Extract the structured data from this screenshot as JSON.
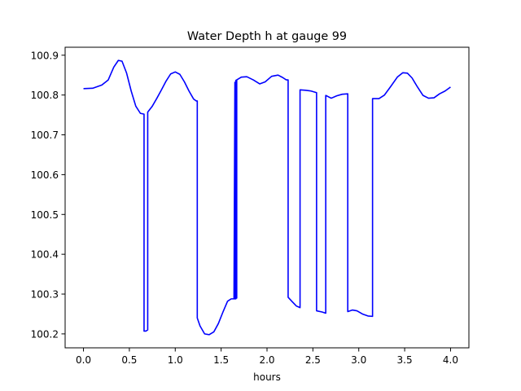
{
  "chart_data": {
    "type": "line",
    "title": "Water Depth h at gauge 99",
    "xlabel": "hours",
    "ylabel": "",
    "xlim": [
      -0.2,
      4.2
    ],
    "ylim": [
      100.165,
      100.92
    ],
    "xticks": [
      0.0,
      0.5,
      1.0,
      1.5,
      2.0,
      2.5,
      3.0,
      3.5,
      4.0
    ],
    "xtick_labels": [
      "0.0",
      "0.5",
      "1.0",
      "1.5",
      "2.0",
      "2.5",
      "3.0",
      "3.5",
      "4.0"
    ],
    "yticks": [
      100.2,
      100.3,
      100.4,
      100.5,
      100.6,
      100.7,
      100.8,
      100.9
    ],
    "ytick_labels": [
      "100.2",
      "100.3",
      "100.4",
      "100.5",
      "100.6",
      "100.7",
      "100.8",
      "100.9"
    ],
    "grid": false,
    "series": [
      {
        "color": "#0000ff",
        "x": [
          0.0,
          0.1,
          0.2,
          0.27,
          0.33,
          0.38,
          0.42,
          0.47,
          0.52,
          0.57,
          0.62,
          0.66,
          0.66,
          0.68,
          0.7,
          0.7,
          0.75,
          0.8,
          0.85,
          0.9,
          0.95,
          1.0,
          1.05,
          1.1,
          1.15,
          1.2,
          1.23,
          1.24,
          1.24,
          1.27,
          1.32,
          1.37,
          1.42,
          1.47,
          1.52,
          1.57,
          1.61,
          1.64,
          1.65,
          1.65,
          1.66,
          1.66,
          1.67,
          1.67,
          1.72,
          1.78,
          1.85,
          1.92,
          1.98,
          2.05,
          2.12,
          2.17,
          2.21,
          2.23,
          2.23,
          2.27,
          2.32,
          2.36,
          2.36,
          2.42,
          2.48,
          2.54,
          2.54,
          2.6,
          2.64,
          2.64,
          2.7,
          2.76,
          2.82,
          2.88,
          2.88,
          2.93,
          2.98,
          3.04,
          3.1,
          3.15,
          3.15,
          3.22,
          3.28,
          3.35,
          3.42,
          3.48,
          3.53,
          3.58,
          3.64,
          3.7,
          3.76,
          3.82,
          3.88,
          3.94,
          4.0
        ],
        "values": [
          100.816,
          100.817,
          100.825,
          100.838,
          100.87,
          100.887,
          100.885,
          100.855,
          100.81,
          100.772,
          100.754,
          100.752,
          100.207,
          100.207,
          100.21,
          100.757,
          100.772,
          100.792,
          100.813,
          100.835,
          100.853,
          100.858,
          100.852,
          100.833,
          100.81,
          100.79,
          100.785,
          100.785,
          100.24,
          100.22,
          100.2,
          100.198,
          100.205,
          100.226,
          100.255,
          100.282,
          100.288,
          100.288,
          100.832,
          100.288,
          100.288,
          100.837,
          100.29,
          100.838,
          100.845,
          100.846,
          100.838,
          100.828,
          100.833,
          100.847,
          100.85,
          100.844,
          100.838,
          100.838,
          100.292,
          100.282,
          100.27,
          100.266,
          100.813,
          100.812,
          100.81,
          100.806,
          100.258,
          100.255,
          100.252,
          100.799,
          100.792,
          100.798,
          100.802,
          100.803,
          100.256,
          100.26,
          100.258,
          100.25,
          100.245,
          100.244,
          100.791,
          100.791,
          100.8,
          100.822,
          100.845,
          100.856,
          100.855,
          100.843,
          100.82,
          100.799,
          100.792,
          100.793,
          100.803,
          100.81,
          100.82
        ]
      }
    ]
  }
}
